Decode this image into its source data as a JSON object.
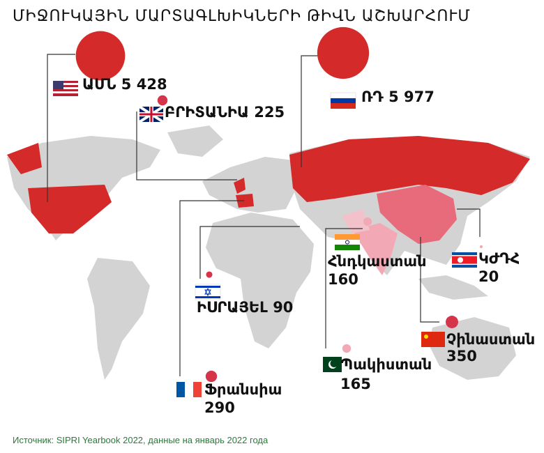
{
  "title": "ՄԻՋՈՒԿԱՅԻՆ ՄԱՐՏԱԳԼԽԻԿՆԵՐԻ ԹԻՎՆ ԱՇԽԱՐՀՈՒՄ",
  "countries": [
    {
      "name": "ԱՄՆ",
      "value": 5428,
      "value_label": "5 428"
    },
    {
      "name": "ԲՐԻՏԱՆԻԱ",
      "value": 225
    },
    {
      "name": "ՌԴ",
      "value": 5977,
      "value_label": "5 977"
    },
    {
      "name": "Հնդկաստան",
      "value": 160
    },
    {
      "name": "ԿԺԴՀ",
      "value": 20
    },
    {
      "name": "ԻՍՐԱՅԵԼ",
      "value": 90
    },
    {
      "name": "Չինաստան",
      "value": 350
    },
    {
      "name": "Պակիստան",
      "value": 165
    },
    {
      "name": "Ֆրանսիա",
      "value": 290
    }
  ],
  "source": "Источник: SIPRI Yearbook 2022, данные на январь 2022 года"
}
